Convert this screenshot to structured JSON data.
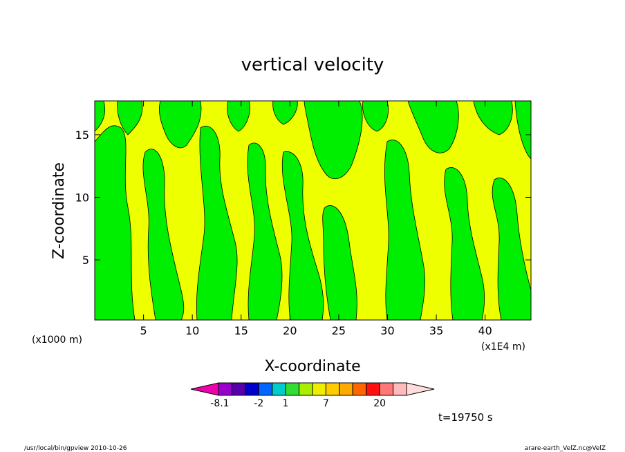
{
  "chart_data": {
    "type": "heatmap",
    "title": "vertical velocity",
    "xlabel": "X-coordinate",
    "ylabel": "Z-coordinate",
    "x_unit_left": "(x1000 m)",
    "x_unit_right": "(x1E4 m)",
    "xlim": [
      0,
      44.7
    ],
    "ylim": [
      0.2,
      17.7
    ],
    "x_ticks": [
      5,
      10,
      15,
      20,
      25,
      30,
      35,
      40
    ],
    "y_ticks": [
      5,
      10,
      15
    ],
    "x_tick_labels": [
      "5",
      "10",
      "15",
      "20",
      "25",
      "30",
      "35",
      "40"
    ],
    "y_tick_labels": [
      "5",
      "10",
      "15"
    ],
    "fill_colors": {
      "negative_small": "#00ee00",
      "positive_small": "#eeff00"
    },
    "colorbar": {
      "colors": [
        "#ee00aa",
        "#9900cc",
        "#5500aa",
        "#0000cc",
        "#0066ff",
        "#00cccc",
        "#33dd33",
        "#aaee00",
        "#eeee00",
        "#ffcc00",
        "#ffaa00",
        "#ff6600",
        "#ff1111",
        "#ff7777",
        "#ffbbbb",
        "#ffdddd"
      ],
      "labels": [
        "-8.1",
        "-2",
        "1",
        "7",
        "20"
      ]
    },
    "time_label": "t=19750 s"
  },
  "footer": {
    "left": "/usr/local/bin/gpview  2010-10-26",
    "right": "arare-earth_VelZ.nc@VelZ"
  }
}
